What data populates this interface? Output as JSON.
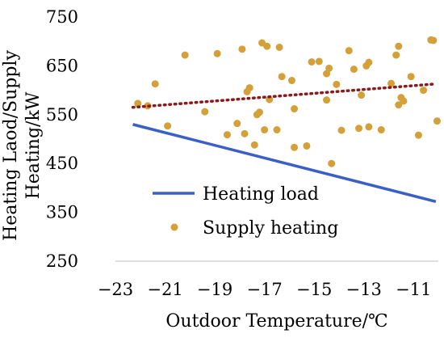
{
  "chart_data": {
    "type": "scatter",
    "xlabel": "Outdoor Temperature/℃",
    "ylabel_lines": [
      "Heating Laod/Supply",
      "Heating/kW"
    ],
    "xlim": [
      -23,
      -10
    ],
    "ylim": [
      250,
      750
    ],
    "xticks": [
      -23,
      -21,
      -19,
      -17,
      -15,
      -13,
      -11
    ],
    "yticks": [
      250,
      350,
      450,
      550,
      650,
      750
    ],
    "xtick_labels": [
      "−23",
      "−21",
      "−19",
      "−17",
      "−15",
      "−13",
      "−11"
    ],
    "ytick_labels": [
      "250",
      "350",
      "450",
      "550",
      "650",
      "750"
    ],
    "grid": false,
    "legend_position": "bottom-center",
    "series": [
      {
        "name": "Heating load",
        "kind": "line",
        "color": "#3a5fc7",
        "points": [
          [
            -22.3,
            530
          ],
          [
            -10.1,
            372
          ]
        ]
      },
      {
        "name": "Supply heating",
        "kind": "scatter",
        "color": "#d4a03a",
        "points": [
          [
            -22.1,
            573
          ],
          [
            -21.7,
            568
          ],
          [
            -21.4,
            613
          ],
          [
            -20.9,
            527
          ],
          [
            -20.2,
            672
          ],
          [
            -19.4,
            556
          ],
          [
            -18.9,
            675
          ],
          [
            -18.5,
            509
          ],
          [
            -18.1,
            532
          ],
          [
            -17.9,
            684
          ],
          [
            -17.8,
            511
          ],
          [
            -17.7,
            597
          ],
          [
            -17.6,
            605
          ],
          [
            -17.4,
            488
          ],
          [
            -17.3,
            550
          ],
          [
            -17.2,
            555
          ],
          [
            -17.1,
            697
          ],
          [
            -17.0,
            519
          ],
          [
            -16.9,
            690
          ],
          [
            -16.8,
            581
          ],
          [
            -16.5,
            519
          ],
          [
            -16.4,
            688
          ],
          [
            -16.3,
            628
          ],
          [
            -15.9,
            620
          ],
          [
            -15.8,
            562
          ],
          [
            -15.8,
            483
          ],
          [
            -15.3,
            486
          ],
          [
            -15.1,
            658
          ],
          [
            -14.8,
            659
          ],
          [
            -14.5,
            634
          ],
          [
            -14.5,
            580
          ],
          [
            -14.4,
            645
          ],
          [
            -14.3,
            450
          ],
          [
            -14.1,
            612
          ],
          [
            -13.9,
            518
          ],
          [
            -13.6,
            681
          ],
          [
            -13.4,
            643
          ],
          [
            -13.2,
            522
          ],
          [
            -13.1,
            590
          ],
          [
            -12.9,
            650
          ],
          [
            -12.8,
            657
          ],
          [
            -12.8,
            525
          ],
          [
            -12.3,
            519
          ],
          [
            -11.9,
            614
          ],
          [
            -11.7,
            672
          ],
          [
            -11.6,
            690
          ],
          [
            -11.6,
            570
          ],
          [
            -11.5,
            585
          ],
          [
            -11.4,
            578
          ],
          [
            -11.1,
            628
          ],
          [
            -10.8,
            508
          ],
          [
            -10.6,
            600
          ],
          [
            -10.3,
            703
          ],
          [
            -10.2,
            702
          ],
          [
            -10.05,
            537
          ]
        ]
      },
      {
        "name": "",
        "kind": "trendline",
        "color": "#8b1a1a",
        "points": [
          [
            -22.3,
            565
          ],
          [
            -10.1,
            613
          ]
        ]
      }
    ]
  }
}
